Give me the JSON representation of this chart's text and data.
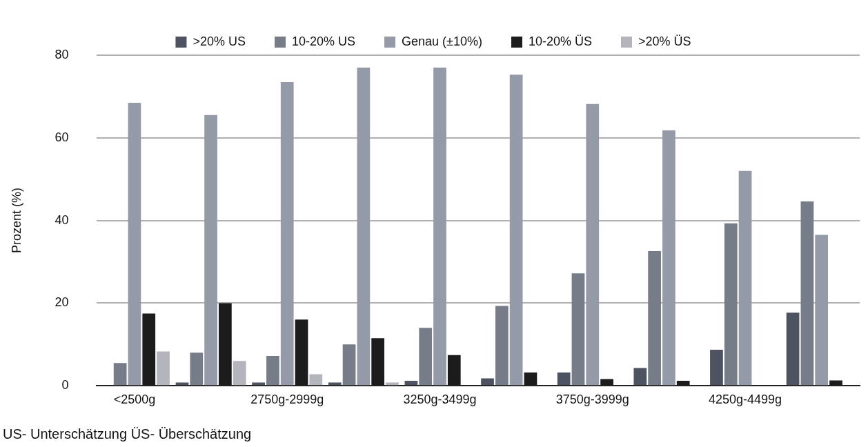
{
  "chart_data": {
    "type": "bar",
    "ylabel": "Prozent (%)",
    "categories": [
      "<2500g",
      null,
      "2750g-2999g",
      null,
      "3250g-3499g",
      null,
      "3750g-3999g",
      null,
      "4250g-4499g",
      null
    ],
    "series": [
      {
        "name": ">20% US",
        "color": "#4d5360",
        "values": [
          0,
          0.8,
          0.8,
          0.8,
          1.2,
          1.8,
          3.2,
          4.3,
          8.7,
          17.7
        ]
      },
      {
        "name": "10-20% US",
        "color": "#767c88",
        "values": [
          5.5,
          8,
          7.2,
          10,
          14,
          19.3,
          27.2,
          32.6,
          39.3,
          44.6
        ]
      },
      {
        "name": "Genau (±10%)",
        "color": "#959aa9",
        "values": [
          68.5,
          65.5,
          73.5,
          77,
          77,
          75.3,
          68.2,
          61.8,
          52,
          36.5
        ]
      },
      {
        "name": "10-20% ÜS",
        "color": "#1c1c1c",
        "values": [
          17.5,
          20,
          16,
          11.5,
          7.4,
          3.2,
          1.6,
          1.2,
          0,
          1.3
        ]
      },
      {
        "name": ">20% ÜS",
        "color": "#b4b4bc",
        "values": [
          8.3,
          6,
          2.8,
          0.8,
          0,
          0,
          0,
          0,
          0,
          0
        ]
      }
    ],
    "ylim": [
      0,
      80
    ],
    "yticks": [
      0,
      20,
      40,
      60,
      80
    ],
    "grid": "y",
    "legend": "top",
    "annotations": [
      "US- Unterschätzung ÜS- Überschätzung"
    ]
  }
}
